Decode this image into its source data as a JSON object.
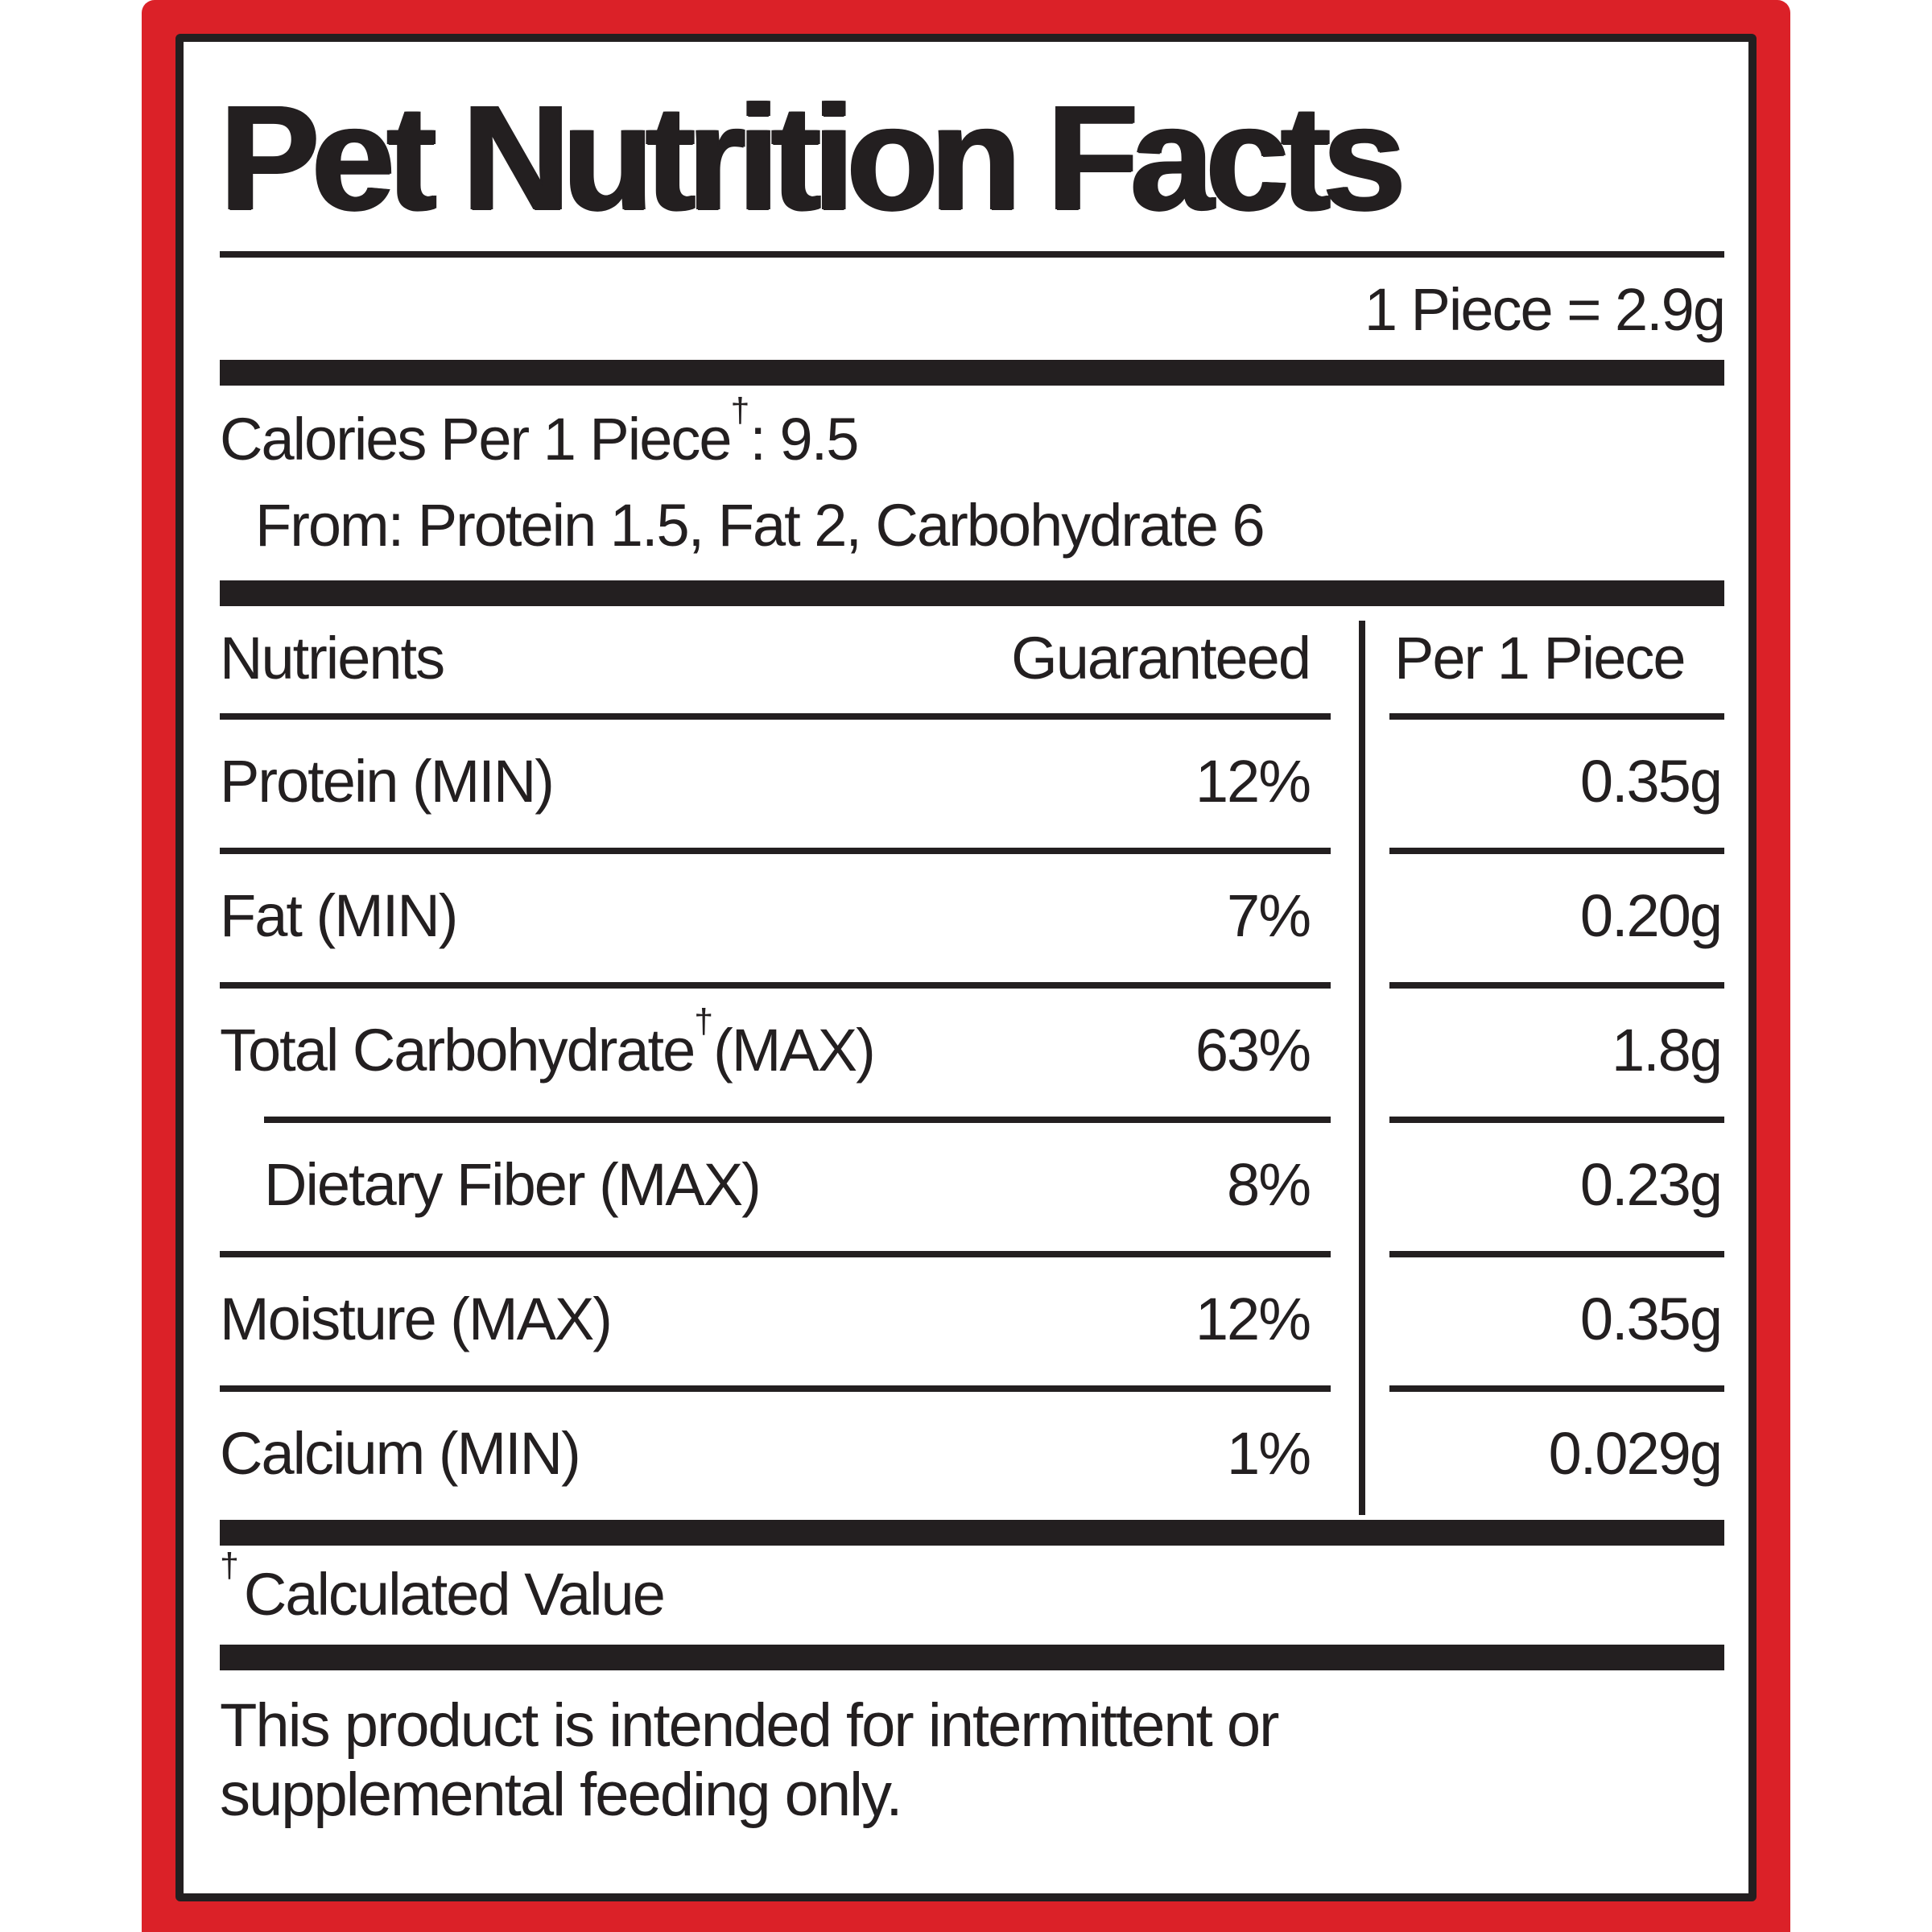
{
  "label": {
    "title": "Pet Nutrition Facts",
    "serving": "1 Piece = 2.9g",
    "calories_line": {
      "pre": "Calories Per 1 Piece",
      "sup": "†",
      "post": ": 9.5"
    },
    "calories_from": "From: Protein 1.5, Fat 2, Carbohydrate 6",
    "table": {
      "col_nutrients": "Nutrients",
      "col_guaranteed": "Guaranteed",
      "col_per_piece": "Per 1 Piece",
      "rows": [
        {
          "name": "Protein (MIN)",
          "sup": "",
          "name_post": "",
          "guaranteed": "12%",
          "per_piece": "0.35g",
          "indent": false,
          "rule_after": "full"
        },
        {
          "name": "Fat (MIN)",
          "sup": "",
          "name_post": "",
          "guaranteed": "7%",
          "per_piece": "0.20g",
          "indent": false,
          "rule_after": "full"
        },
        {
          "name": "Total Carbohydrate",
          "sup": "†",
          "name_post": "(MAX)",
          "guaranteed": "63%",
          "per_piece": "1.8g",
          "indent": false,
          "rule_after": "indent"
        },
        {
          "name": "Dietary Fiber (MAX)",
          "sup": "",
          "name_post": "",
          "guaranteed": "8%",
          "per_piece": "0.23g",
          "indent": true,
          "rule_after": "full"
        },
        {
          "name": "Moisture (MAX)",
          "sup": "",
          "name_post": "",
          "guaranteed": "12%",
          "per_piece": "0.35g",
          "indent": false,
          "rule_after": "full"
        },
        {
          "name": "Calcium (MIN)",
          "sup": "",
          "name_post": "",
          "guaranteed": "1%",
          "per_piece": "0.029g",
          "indent": false,
          "rule_after": "none"
        }
      ]
    },
    "footnote": {
      "sup": "†",
      "text": "Calculated Value"
    },
    "note": [
      "This product is intended for intermittent or",
      "supplemental feeding only."
    ],
    "colors": {
      "border_red": "#DB2128",
      "ink_black": "#231F20",
      "background": "#FFFFFF"
    }
  }
}
